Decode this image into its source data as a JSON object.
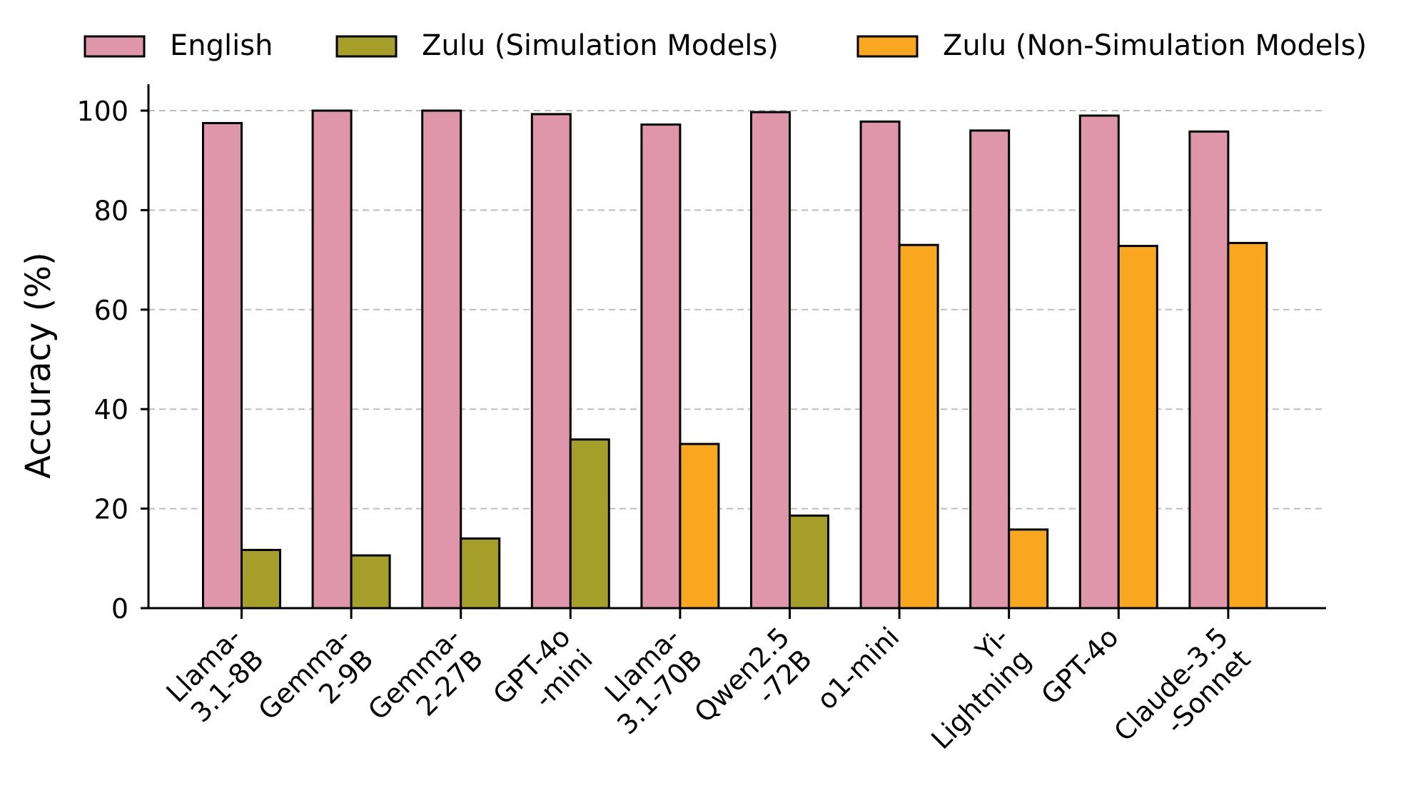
{
  "chart_data": {
    "type": "bar",
    "title": "",
    "xlabel": "",
    "ylabel": "Accuracy (%)",
    "ylim": [
      0,
      105
    ],
    "yticks": [
      0,
      20,
      40,
      60,
      80,
      100
    ],
    "grid": "horizontal dashed",
    "legend_position": "top",
    "categories": [
      [
        "Llama-",
        "3.1-8B"
      ],
      [
        "Gemma-",
        "2-9B"
      ],
      [
        "Gemma-",
        "2-27B"
      ],
      [
        "GPT-4o",
        "-mini"
      ],
      [
        "Llama-",
        "3.1-70B"
      ],
      [
        "Qwen2.5",
        "-72B"
      ],
      [
        "o1-mini"
      ],
      [
        "Yi-",
        "Lightning"
      ],
      [
        "GPT-4o"
      ],
      [
        "Claude-3.5",
        "-Sonnet"
      ]
    ],
    "legend": [
      {
        "label": "English",
        "color": "#E096AA"
      },
      {
        "label": "Zulu (Simulation Models)",
        "color": "#A59F2A"
      },
      {
        "label": "Zulu (Non-Simulation Models)",
        "color": "#F9A71F"
      }
    ],
    "series": [
      {
        "name": "English",
        "values": [
          97.5,
          100,
          100,
          99.3,
          97.2,
          99.7,
          97.8,
          96.0,
          99.0,
          95.8
        ]
      },
      {
        "name": "Zulu",
        "values": [
          11.7,
          10.6,
          14.0,
          33.9,
          33.0,
          18.6,
          73.0,
          15.8,
          72.8,
          73.4
        ]
      }
    ],
    "zulu_model_type": [
      "simulation",
      "simulation",
      "simulation",
      "simulation",
      "non-simulation",
      "simulation",
      "non-simulation",
      "non-simulation",
      "non-simulation",
      "non-simulation"
    ]
  }
}
